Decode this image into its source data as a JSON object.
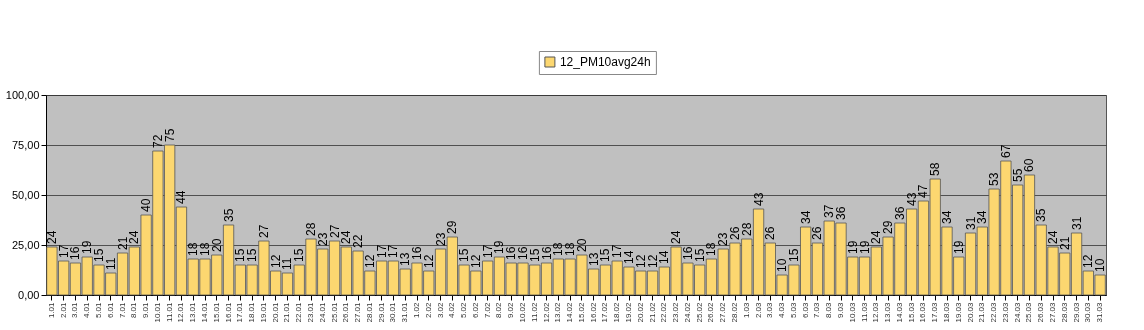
{
  "chart_data": {
    "type": "bar",
    "categories": [
      "1.01",
      "2.01",
      "3.01",
      "4.01",
      "5.01",
      "6.01",
      "7.01",
      "8.01",
      "9.01",
      "10.01",
      "11.01",
      "12.01",
      "13.01",
      "14.01",
      "15.01",
      "16.01",
      "17.01",
      "18.01",
      "19.01",
      "20.01",
      "21.01",
      "22.01",
      "23.01",
      "24.01",
      "25.01",
      "26.01",
      "27.01",
      "28.01",
      "29.01",
      "30.01",
      "31.01",
      "1.02",
      "2.02",
      "3.02",
      "4.02",
      "5.02",
      "6.02",
      "7.02",
      "8.02",
      "9.02",
      "10.02",
      "11.02",
      "12.02",
      "13.02",
      "14.02",
      "15.02",
      "16.02",
      "17.02",
      "18.02",
      "19.02",
      "20.02",
      "21.02",
      "22.02",
      "23.02",
      "24.02",
      "25.02",
      "26.02",
      "27.02",
      "28.02",
      "1.03",
      "2.03",
      "3.03",
      "4.03",
      "5.03",
      "6.03",
      "7.03",
      "8.03",
      "9.03",
      "10.03",
      "11.03",
      "12.03",
      "13.03",
      "14.03",
      "15.03",
      "16.03",
      "17.03",
      "18.03",
      "19.03",
      "20.03",
      "21.03",
      "22.03",
      "23.03",
      "24.03",
      "25.03",
      "26.03",
      "27.03",
      "28.03",
      "29.03",
      "30.03",
      "31.03"
    ],
    "series": [
      {
        "name": "12_PM10avg24h",
        "color": "#fcd770",
        "values": [
          24,
          17,
          16,
          19,
          15,
          11,
          21,
          24,
          40,
          72,
          75,
          44,
          18,
          18,
          20,
          35,
          15,
          15,
          27,
          12,
          11,
          15,
          28,
          23,
          27,
          24,
          22,
          12,
          17,
          17,
          13,
          16,
          12,
          23,
          29,
          15,
          12,
          17,
          19,
          16,
          16,
          15,
          16,
          18,
          18,
          20,
          13,
          15,
          17,
          14,
          12,
          12,
          14,
          24,
          16,
          15,
          18,
          23,
          26,
          28,
          43,
          26,
          10,
          15,
          34,
          26,
          37,
          36,
          19,
          19,
          24,
          29,
          36,
          43,
          47,
          58,
          34,
          19,
          31,
          34,
          53,
          67,
          55,
          60,
          35,
          24,
          21,
          31,
          12,
          10
        ]
      }
    ],
    "ylim": [
      0,
      100
    ],
    "yticks": [
      {
        "value": 0,
        "label": "0,00"
      },
      {
        "value": 25,
        "label": "25,00"
      },
      {
        "value": 50,
        "label": "50,00"
      },
      {
        "value": 75,
        "label": "75,00"
      },
      {
        "value": 100,
        "label": "100,00"
      }
    ],
    "grid": "y",
    "legend": "top",
    "data_labels": true
  }
}
